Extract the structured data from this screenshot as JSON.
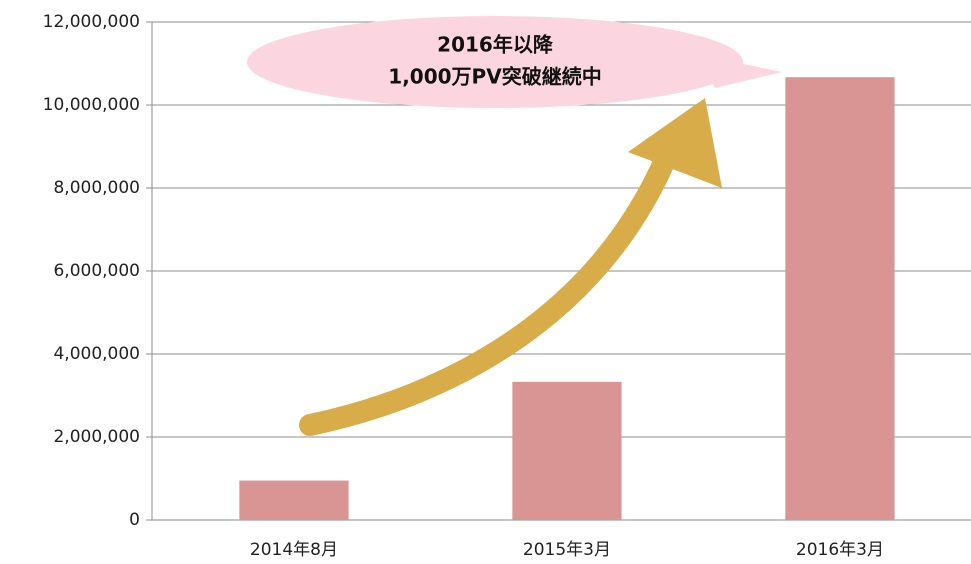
{
  "chart_data": {
    "type": "bar",
    "categories": [
      "2014年8月",
      "2015年3月",
      "2016年3月"
    ],
    "values": [
      950000,
      3330000,
      10670000
    ],
    "color": "#d99594",
    "ylim": [
      0,
      12000000
    ],
    "yticks": [
      0,
      {
        "value": 2000000,
        "label": "2,000,000"
      },
      {
        "value": 4000000,
        "label": "4,000,000"
      },
      {
        "value": 6000000,
        "label": "6,000,000"
      },
      {
        "value": 8000000,
        "label": "8,000,000"
      },
      {
        "value": 10000000,
        "label": "10,000,000"
      },
      {
        "value": 12000000,
        "label": "12,000,000"
      }
    ],
    "grid": true,
    "annotation": [
      "2016年以降",
      "1,000万PV突破継続中"
    ]
  }
}
